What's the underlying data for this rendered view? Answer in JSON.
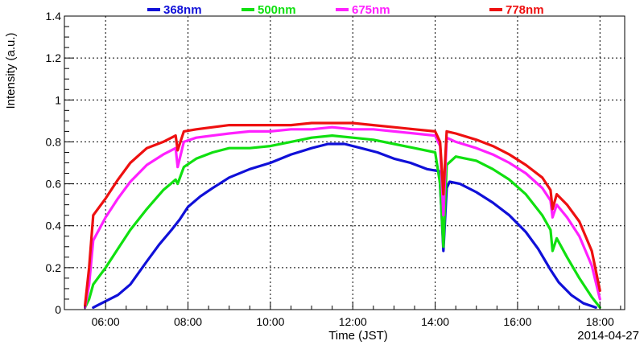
{
  "chart_data": {
    "type": "line",
    "xlabel": "Time (JST)",
    "ylabel": "Intensity (a.u.)",
    "date": "2014-04-27",
    "xlim": [
      5.0,
      18.6
    ],
    "ylim": [
      0,
      1.4
    ],
    "grid": true,
    "legend_position": "top",
    "x_ticks": [
      {
        "value": 6,
        "label": "06:00"
      },
      {
        "value": 8,
        "label": "08:00"
      },
      {
        "value": 10,
        "label": "10:00"
      },
      {
        "value": 12,
        "label": "12:00"
      },
      {
        "value": 14,
        "label": "14:00"
      },
      {
        "value": 16,
        "label": "16:00"
      },
      {
        "value": 18,
        "label": "18:00"
      }
    ],
    "y_ticks": [
      {
        "value": 0,
        "label": "0"
      },
      {
        "value": 0.2,
        "label": "0.2"
      },
      {
        "value": 0.4,
        "label": "0.4"
      },
      {
        "value": 0.6,
        "label": "0.6"
      },
      {
        "value": 0.8,
        "label": "0.8"
      },
      {
        "value": 1.0,
        "label": "1"
      },
      {
        "value": 1.2,
        "label": "1.2"
      },
      {
        "value": 1.4,
        "label": "1.4"
      }
    ],
    "series": [
      {
        "name": "368nm",
        "color": "#1010d8",
        "points": [
          [
            5.7,
            0.01
          ],
          [
            6.0,
            0.04
          ],
          [
            6.3,
            0.07
          ],
          [
            6.6,
            0.12
          ],
          [
            7.0,
            0.23
          ],
          [
            7.3,
            0.31
          ],
          [
            7.6,
            0.38
          ],
          [
            7.8,
            0.43
          ],
          [
            8.0,
            0.49
          ],
          [
            8.3,
            0.54
          ],
          [
            8.6,
            0.58
          ],
          [
            9.0,
            0.63
          ],
          [
            9.5,
            0.67
          ],
          [
            10.0,
            0.7
          ],
          [
            10.5,
            0.74
          ],
          [
            11.0,
            0.77
          ],
          [
            11.4,
            0.79
          ],
          [
            11.8,
            0.79
          ],
          [
            12.2,
            0.77
          ],
          [
            12.6,
            0.75
          ],
          [
            13.0,
            0.72
          ],
          [
            13.4,
            0.7
          ],
          [
            13.8,
            0.67
          ],
          [
            14.1,
            0.66
          ],
          [
            14.15,
            0.48
          ],
          [
            14.2,
            0.28
          ],
          [
            14.28,
            0.58
          ],
          [
            14.35,
            0.61
          ],
          [
            14.6,
            0.6
          ],
          [
            15.0,
            0.56
          ],
          [
            15.4,
            0.51
          ],
          [
            15.8,
            0.45
          ],
          [
            16.2,
            0.37
          ],
          [
            16.5,
            0.29
          ],
          [
            16.8,
            0.19
          ],
          [
            17.0,
            0.13
          ],
          [
            17.3,
            0.07
          ],
          [
            17.6,
            0.03
          ],
          [
            17.9,
            0.01
          ]
        ]
      },
      {
        "name": "500nm",
        "color": "#10e010",
        "points": [
          [
            5.5,
            0.01
          ],
          [
            5.6,
            0.05
          ],
          [
            5.7,
            0.12
          ],
          [
            6.0,
            0.2
          ],
          [
            6.3,
            0.29
          ],
          [
            6.6,
            0.38
          ],
          [
            7.0,
            0.48
          ],
          [
            7.4,
            0.57
          ],
          [
            7.7,
            0.62
          ],
          [
            7.75,
            0.6
          ],
          [
            7.9,
            0.68
          ],
          [
            8.2,
            0.72
          ],
          [
            8.6,
            0.75
          ],
          [
            9.0,
            0.77
          ],
          [
            9.5,
            0.77
          ],
          [
            10.0,
            0.78
          ],
          [
            10.5,
            0.8
          ],
          [
            11.0,
            0.82
          ],
          [
            11.5,
            0.83
          ],
          [
            12.0,
            0.82
          ],
          [
            12.5,
            0.81
          ],
          [
            13.0,
            0.79
          ],
          [
            13.5,
            0.77
          ],
          [
            14.0,
            0.75
          ],
          [
            14.12,
            0.6
          ],
          [
            14.2,
            0.3
          ],
          [
            14.28,
            0.69
          ],
          [
            14.5,
            0.73
          ],
          [
            15.0,
            0.71
          ],
          [
            15.4,
            0.67
          ],
          [
            15.8,
            0.62
          ],
          [
            16.2,
            0.55
          ],
          [
            16.6,
            0.45
          ],
          [
            16.8,
            0.38
          ],
          [
            16.85,
            0.28
          ],
          [
            16.95,
            0.34
          ],
          [
            17.2,
            0.25
          ],
          [
            17.5,
            0.15
          ],
          [
            17.8,
            0.06
          ],
          [
            18.0,
            0.01
          ]
        ]
      },
      {
        "name": "675nm",
        "color": "#ff20ff",
        "points": [
          [
            5.5,
            0.01
          ],
          [
            5.6,
            0.12
          ],
          [
            5.7,
            0.33
          ],
          [
            6.0,
            0.44
          ],
          [
            6.3,
            0.53
          ],
          [
            6.6,
            0.61
          ],
          [
            7.0,
            0.69
          ],
          [
            7.4,
            0.74
          ],
          [
            7.7,
            0.77
          ],
          [
            7.75,
            0.68
          ],
          [
            7.9,
            0.8
          ],
          [
            8.2,
            0.82
          ],
          [
            8.6,
            0.83
          ],
          [
            9.0,
            0.84
          ],
          [
            9.5,
            0.85
          ],
          [
            10.0,
            0.85
          ],
          [
            10.5,
            0.86
          ],
          [
            11.0,
            0.86
          ],
          [
            11.5,
            0.87
          ],
          [
            12.0,
            0.86
          ],
          [
            12.5,
            0.86
          ],
          [
            13.0,
            0.85
          ],
          [
            13.5,
            0.84
          ],
          [
            14.0,
            0.83
          ],
          [
            14.12,
            0.78
          ],
          [
            14.2,
            0.45
          ],
          [
            14.28,
            0.82
          ],
          [
            14.5,
            0.8
          ],
          [
            15.0,
            0.77
          ],
          [
            15.4,
            0.74
          ],
          [
            15.8,
            0.7
          ],
          [
            16.2,
            0.65
          ],
          [
            16.6,
            0.58
          ],
          [
            16.8,
            0.52
          ],
          [
            16.85,
            0.44
          ],
          [
            16.95,
            0.5
          ],
          [
            17.2,
            0.44
          ],
          [
            17.5,
            0.35
          ],
          [
            17.8,
            0.21
          ],
          [
            18.0,
            0.05
          ]
        ]
      },
      {
        "name": "778nm",
        "color": "#ee1010",
        "points": [
          [
            5.5,
            0.02
          ],
          [
            5.6,
            0.2
          ],
          [
            5.7,
            0.45
          ],
          [
            6.0,
            0.53
          ],
          [
            6.3,
            0.62
          ],
          [
            6.6,
            0.7
          ],
          [
            7.0,
            0.77
          ],
          [
            7.4,
            0.8
          ],
          [
            7.7,
            0.83
          ],
          [
            7.75,
            0.76
          ],
          [
            7.9,
            0.85
          ],
          [
            8.2,
            0.86
          ],
          [
            8.6,
            0.87
          ],
          [
            9.0,
            0.88
          ],
          [
            9.5,
            0.88
          ],
          [
            10.0,
            0.88
          ],
          [
            10.5,
            0.88
          ],
          [
            11.0,
            0.89
          ],
          [
            11.5,
            0.89
          ],
          [
            12.0,
            0.89
          ],
          [
            12.5,
            0.88
          ],
          [
            13.0,
            0.87
          ],
          [
            13.5,
            0.86
          ],
          [
            14.0,
            0.85
          ],
          [
            14.12,
            0.8
          ],
          [
            14.2,
            0.55
          ],
          [
            14.28,
            0.85
          ],
          [
            14.5,
            0.84
          ],
          [
            15.0,
            0.81
          ],
          [
            15.4,
            0.78
          ],
          [
            15.8,
            0.74
          ],
          [
            16.2,
            0.69
          ],
          [
            16.6,
            0.63
          ],
          [
            16.8,
            0.57
          ],
          [
            16.85,
            0.48
          ],
          [
            16.95,
            0.55
          ],
          [
            17.2,
            0.5
          ],
          [
            17.5,
            0.42
          ],
          [
            17.8,
            0.28
          ],
          [
            18.0,
            0.09
          ]
        ]
      }
    ]
  }
}
